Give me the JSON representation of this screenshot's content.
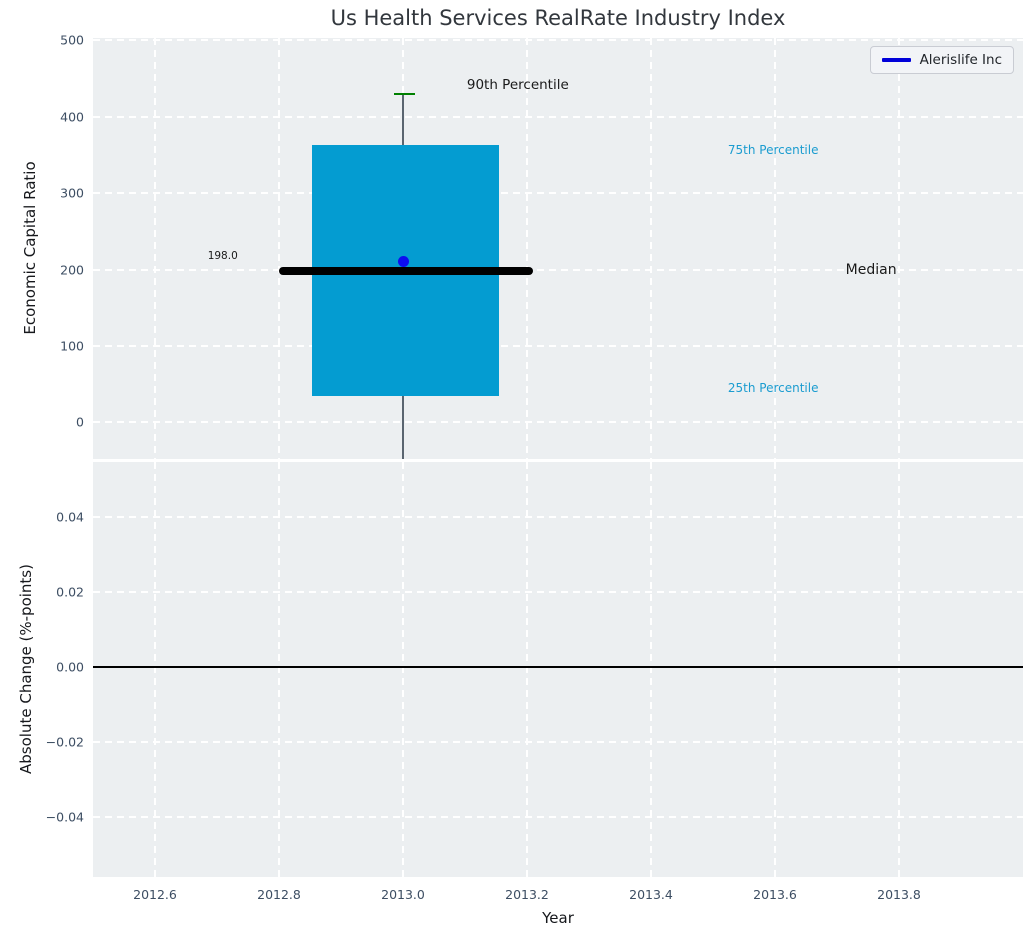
{
  "title": "Us Health Services RealRate Industry Index",
  "colors": {
    "figure_bg": "#ffffff",
    "axes_bg": "#eceff1",
    "grid": "#ffffff",
    "tick_label": "#3d4e63",
    "axis_label": "#16181c",
    "title": "#32373d",
    "box_fill": "#049cd1",
    "median_line": "#000000",
    "whisker": "#5a6570",
    "percentile_cap": "#008000",
    "company_dot": "#0d0df0",
    "legend_line": "#0000d9",
    "zero_line": "#000000",
    "annotation_cyan": "#1b9cd0",
    "annotation_black": "#1a1a1a"
  },
  "legend": {
    "label": "Alerislife Inc"
  },
  "chart_data": [
    {
      "type": "box",
      "title": "Us Health Services RealRate Industry Index",
      "ylabel": "Economic Capital Ratio",
      "xlabel": "",
      "xlim": [
        2012.5,
        2014.0
      ],
      "ylim": [
        -48,
        503
      ],
      "grid": true,
      "legend_position": "upper right",
      "xticks": {
        "values": [
          2012.6,
          2012.8,
          2013.0,
          2013.2,
          2013.4,
          2013.6,
          2013.8
        ],
        "labels": [
          "2012.6",
          "2012.8",
          "2013.0",
          "2013.2",
          "2013.4",
          "2013.6",
          "2013.8"
        ],
        "show_labels": false
      },
      "yticks": {
        "values": [
          0,
          100,
          200,
          300,
          400,
          500
        ],
        "labels": [
          "0",
          "100",
          "200",
          "300",
          "400",
          "500"
        ]
      },
      "box": {
        "x": 2013.0,
        "p25": 35,
        "median": 198,
        "p75": 363,
        "p90": 430,
        "box_x": [
          2012.853,
          2013.155
        ],
        "median_x": [
          2012.8,
          2013.21
        ],
        "cap_x": [
          2012.985,
          2013.02
        ],
        "whisker_x": 2013.0,
        "whisker_bottom": -48
      },
      "series": [
        {
          "name": "Alerislife Inc",
          "x": [
            2013.0
          ],
          "y": [
            210
          ],
          "marker": "dot"
        }
      ],
      "annotations": [
        {
          "text": "198.0",
          "x": 2012.685,
          "y": 218,
          "color_key": "annotation_black",
          "size": 10.5
        },
        {
          "text": "90th Percentile",
          "x": 2013.103,
          "y": 441,
          "color_key": "annotation_black",
          "size": 13.5
        },
        {
          "text": "75th Percentile",
          "x": 2013.524,
          "y": 356,
          "color_key": "annotation_cyan",
          "size": 12
        },
        {
          "text": "Median",
          "x": 2013.714,
          "y": 199,
          "color_key": "annotation_black",
          "size": 14
        },
        {
          "text": "25th Percentile",
          "x": 2013.524,
          "y": 45,
          "color_key": "annotation_cyan",
          "size": 12
        }
      ]
    },
    {
      "type": "line",
      "ylabel": "Absolute Change (%-points)",
      "xlabel": "Year",
      "xlim": [
        2012.5,
        2014.0
      ],
      "ylim": [
        -0.056,
        0.0547
      ],
      "grid": true,
      "zero_line": 0.0,
      "xticks": {
        "values": [
          2012.6,
          2012.8,
          2013.0,
          2013.2,
          2013.4,
          2013.6,
          2013.8
        ],
        "labels": [
          "2012.6",
          "2012.8",
          "2013.0",
          "2013.2",
          "2013.4",
          "2013.6",
          "2013.8"
        ],
        "show_labels": true
      },
      "yticks": {
        "values": [
          0.04,
          0.02,
          0.0,
          -0.02,
          -0.04
        ],
        "labels": [
          "0.04",
          "0.02",
          "0.00",
          "−0.02",
          "−0.04"
        ]
      },
      "series": []
    }
  ]
}
